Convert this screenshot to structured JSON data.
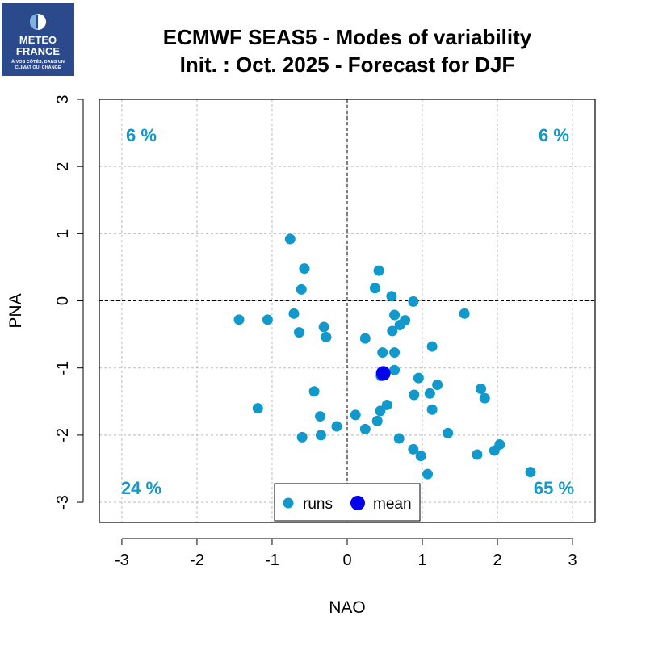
{
  "logo": {
    "line1": "METEO",
    "line2": "FRANCE",
    "tagline1": "À VOS CÔTÉS, DANS UN",
    "tagline2": "CLIMAT QUI CHANGE"
  },
  "chart_data": {
    "type": "scatter",
    "title": "ECMWF SEAS5 - Modes of variability",
    "subtitle": "Init. : Oct. 2025 - Forecast for DJF",
    "xlabel": "NAO",
    "ylabel": "PNA",
    "xlim": [
      -3.3,
      3.3
    ],
    "ylim": [
      -3.3,
      3.0
    ],
    "xticks": [
      -3,
      -2,
      -1,
      0,
      1,
      2,
      3
    ],
    "yticks": [
      -3,
      -2,
      -1,
      0,
      1,
      2,
      3
    ],
    "grid": true,
    "colors": {
      "runs": "#1199cc",
      "mean": "#0000ee",
      "quadrant_text": "#1199cc"
    },
    "quadrant_labels": {
      "top_left": "6 %",
      "top_right": "6 %",
      "bottom_left": "24 %",
      "bottom_right": "65 %"
    },
    "legend": {
      "position": "bottom-center",
      "entries": [
        "runs",
        "mean"
      ]
    },
    "series": [
      {
        "name": "runs",
        "points": [
          [
            -0.76,
            0.92
          ],
          [
            -0.57,
            0.48
          ],
          [
            -0.61,
            0.17
          ],
          [
            -1.44,
            -0.28
          ],
          [
            -1.06,
            -0.28
          ],
          [
            -0.71,
            -0.19
          ],
          [
            -0.64,
            -0.47
          ],
          [
            -0.31,
            -0.39
          ],
          [
            -0.28,
            -0.54
          ],
          [
            -0.44,
            -1.35
          ],
          [
            -1.19,
            -1.6
          ],
          [
            -0.36,
            -1.72
          ],
          [
            -0.6,
            -2.03
          ],
          [
            -0.35,
            -2.0
          ],
          [
            -0.14,
            -1.87
          ],
          [
            0.42,
            0.45
          ],
          [
            0.37,
            0.19
          ],
          [
            0.59,
            0.07
          ],
          [
            0.88,
            -0.01
          ],
          [
            1.56,
            -0.19
          ],
          [
            0.63,
            -0.21
          ],
          [
            0.77,
            -0.29
          ],
          [
            0.7,
            -0.36
          ],
          [
            0.6,
            -0.45
          ],
          [
            0.24,
            -0.56
          ],
          [
            1.13,
            -0.68
          ],
          [
            0.47,
            -0.77
          ],
          [
            0.63,
            -0.77
          ],
          [
            0.63,
            -1.03
          ],
          [
            0.95,
            -1.15
          ],
          [
            0.45,
            -1.12
          ],
          [
            1.2,
            -1.25
          ],
          [
            1.1,
            -1.38
          ],
          [
            0.89,
            -1.4
          ],
          [
            1.78,
            -1.31
          ],
          [
            1.83,
            -1.45
          ],
          [
            0.53,
            -1.55
          ],
          [
            0.44,
            -1.64
          ],
          [
            1.13,
            -1.62
          ],
          [
            0.11,
            -1.7
          ],
          [
            0.4,
            -1.79
          ],
          [
            0.24,
            -1.91
          ],
          [
            0.69,
            -2.05
          ],
          [
            1.34,
            -1.97
          ],
          [
            0.88,
            -2.21
          ],
          [
            0.98,
            -2.31
          ],
          [
            1.73,
            -2.29
          ],
          [
            2.03,
            -2.14
          ],
          [
            1.96,
            -2.23
          ],
          [
            1.07,
            -2.58
          ],
          [
            2.44,
            -2.55
          ]
        ]
      },
      {
        "name": "mean",
        "points": [
          [
            0.48,
            -1.08
          ]
        ]
      }
    ]
  }
}
